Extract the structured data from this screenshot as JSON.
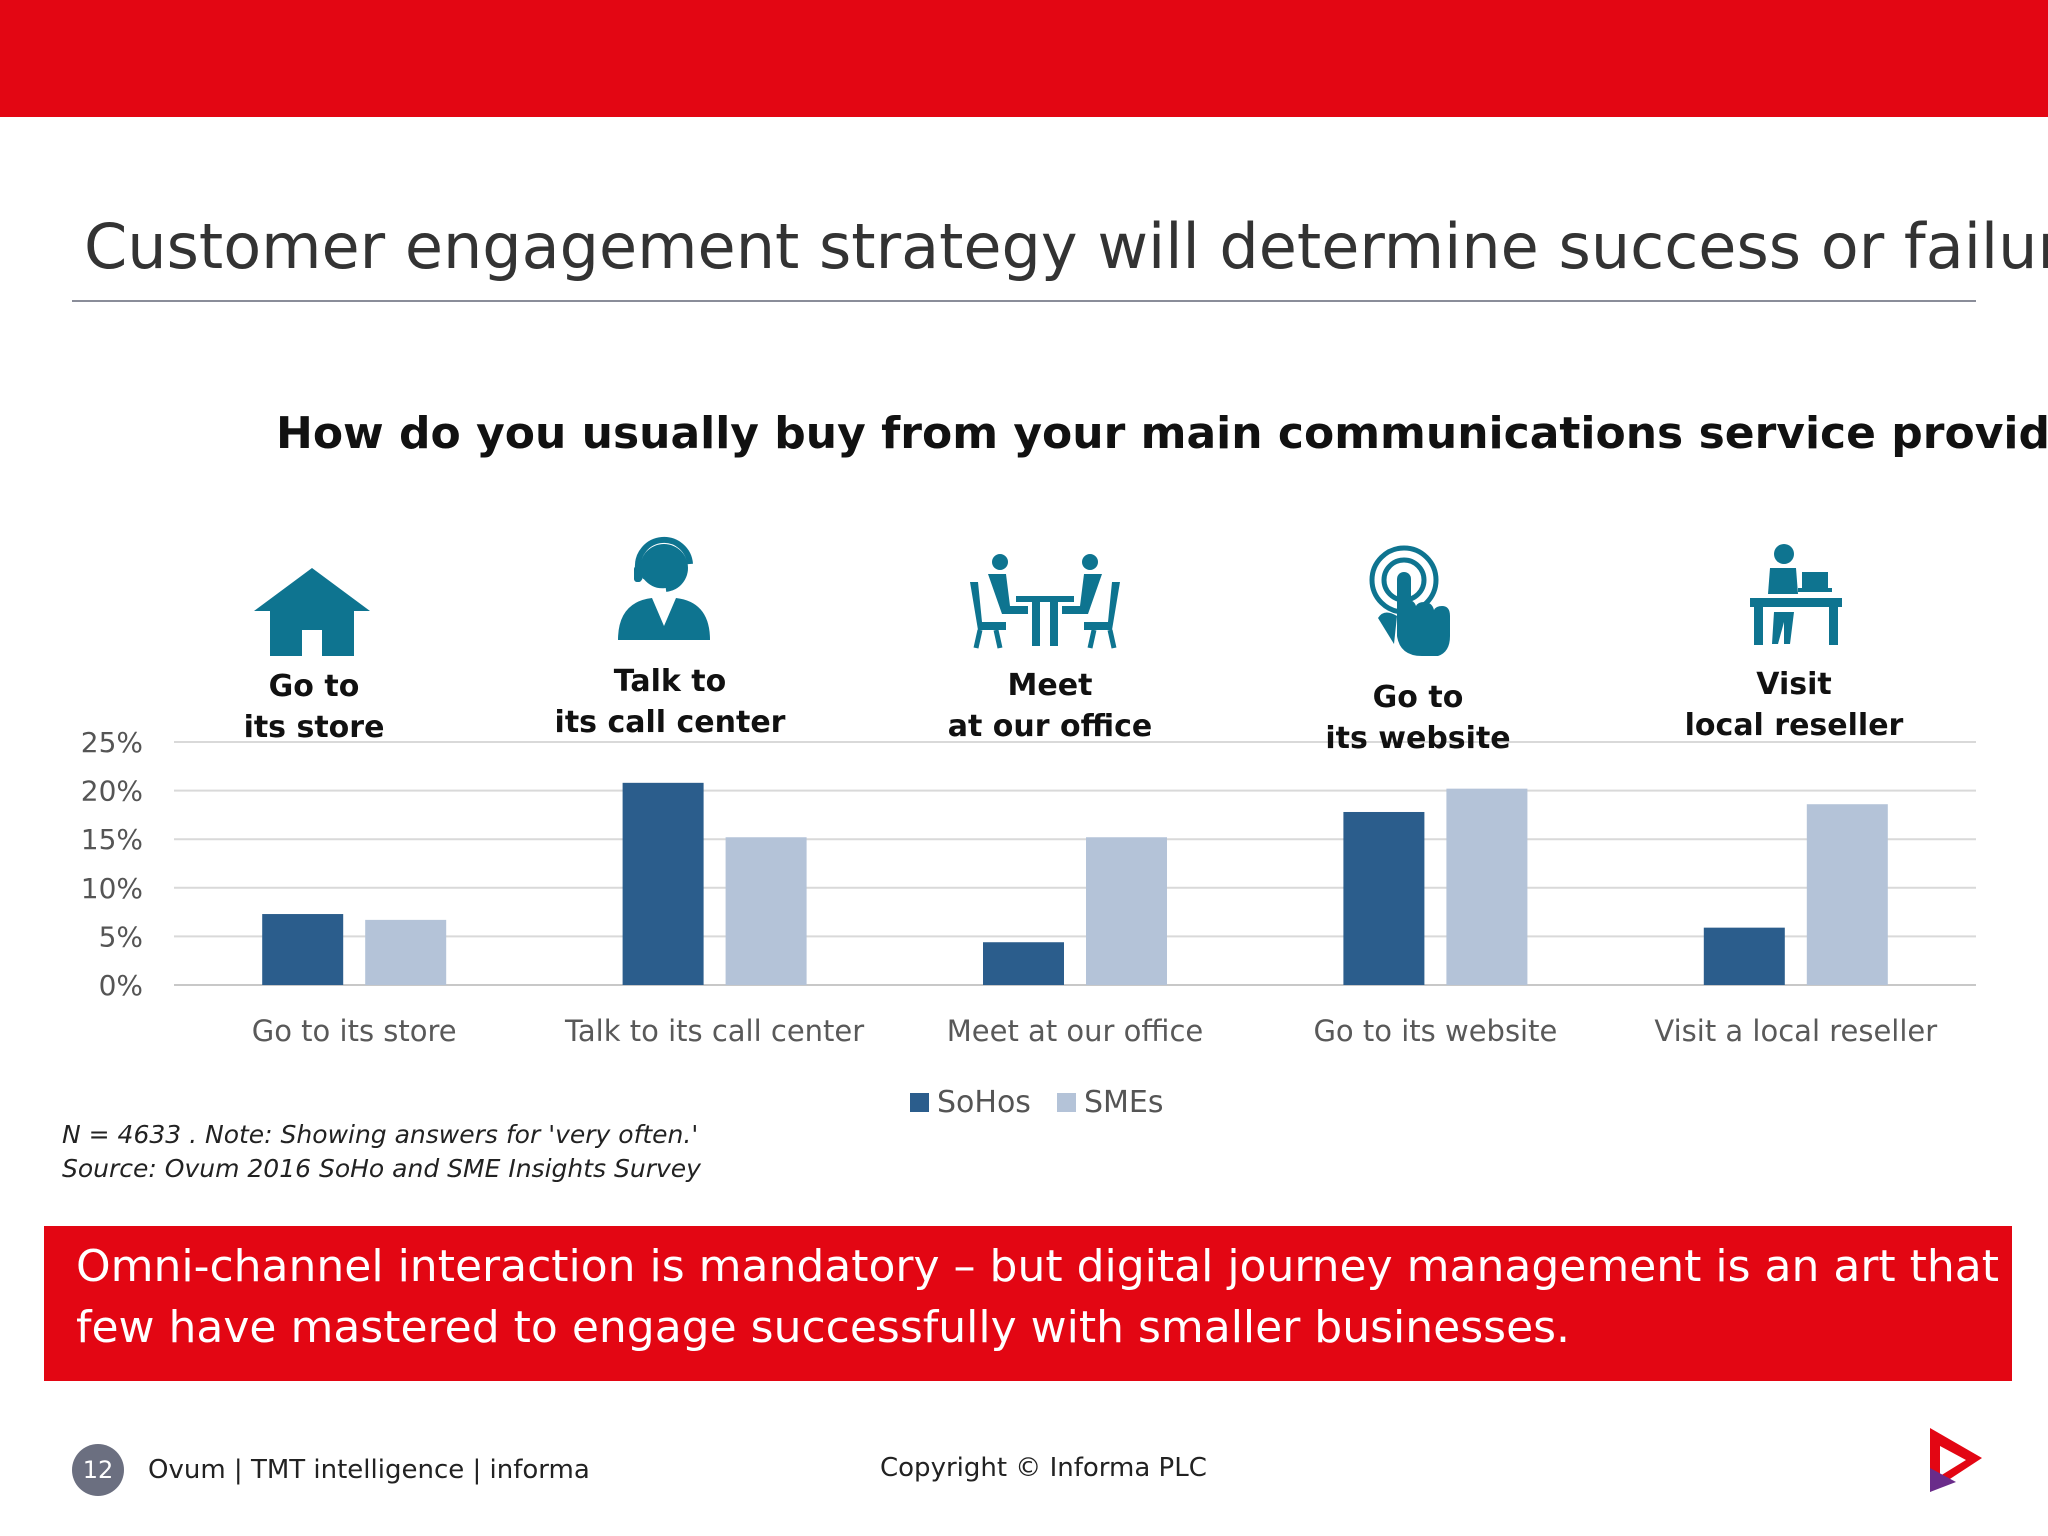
{
  "slide": {
    "title": "Customer engagement strategy will determine success or failure",
    "question": "How do you usually buy from your main communications service provider?",
    "accent_color": "#e30613",
    "icon_color": "#0e7490"
  },
  "channels": [
    {
      "icon": "house-icon",
      "caption_line1": "Go to",
      "caption_line2": "its store"
    },
    {
      "icon": "headset-agent-icon",
      "caption_line1": "Talk to",
      "caption_line2": "its call center"
    },
    {
      "icon": "meeting-table-icon",
      "caption_line1": "Meet",
      "caption_line2": "at our office"
    },
    {
      "icon": "touch-click-icon",
      "caption_line1": "Go to",
      "caption_line2": "its website"
    },
    {
      "icon": "desk-worker-icon",
      "caption_line1": "Visit",
      "caption_line2": "local reseller"
    }
  ],
  "chart_data": {
    "type": "bar",
    "title": "How do you usually buy from your main communications service provider?",
    "categories": [
      "Go to its store",
      "Talk to its call center",
      "Meet at our office",
      "Go to its website",
      "Visit a local reseller"
    ],
    "series": [
      {
        "name": "SoHos",
        "color": "#2b5d8c",
        "values": [
          7.3,
          20.8,
          4.4,
          17.8,
          5.9
        ]
      },
      {
        "name": "SMEs",
        "color": "#b4c3d8",
        "values": [
          6.7,
          15.2,
          15.2,
          20.2,
          18.6
        ]
      }
    ],
    "yticks": [
      "0%",
      "5%",
      "10%",
      "15%",
      "20%",
      "25%"
    ],
    "ylim": [
      0,
      25
    ],
    "xlabel": "",
    "ylabel": "",
    "legend_position": "bottom"
  },
  "notes": {
    "line1": "N = 4633 . Note: Showing answers for 'very often.'",
    "line2": "Source: Ovum 2016 SoHo and SME Insights Survey"
  },
  "banner": {
    "line1": "Omni-channel interaction  is mandatory – but digital journey management is an art that",
    "line2": "few have mastered to engage successfully with smaller businesses."
  },
  "footer": {
    "page_number": "12",
    "brand": "Ovum | TMT intelligence | informa",
    "copyright": "Copyright © Informa PLC"
  }
}
